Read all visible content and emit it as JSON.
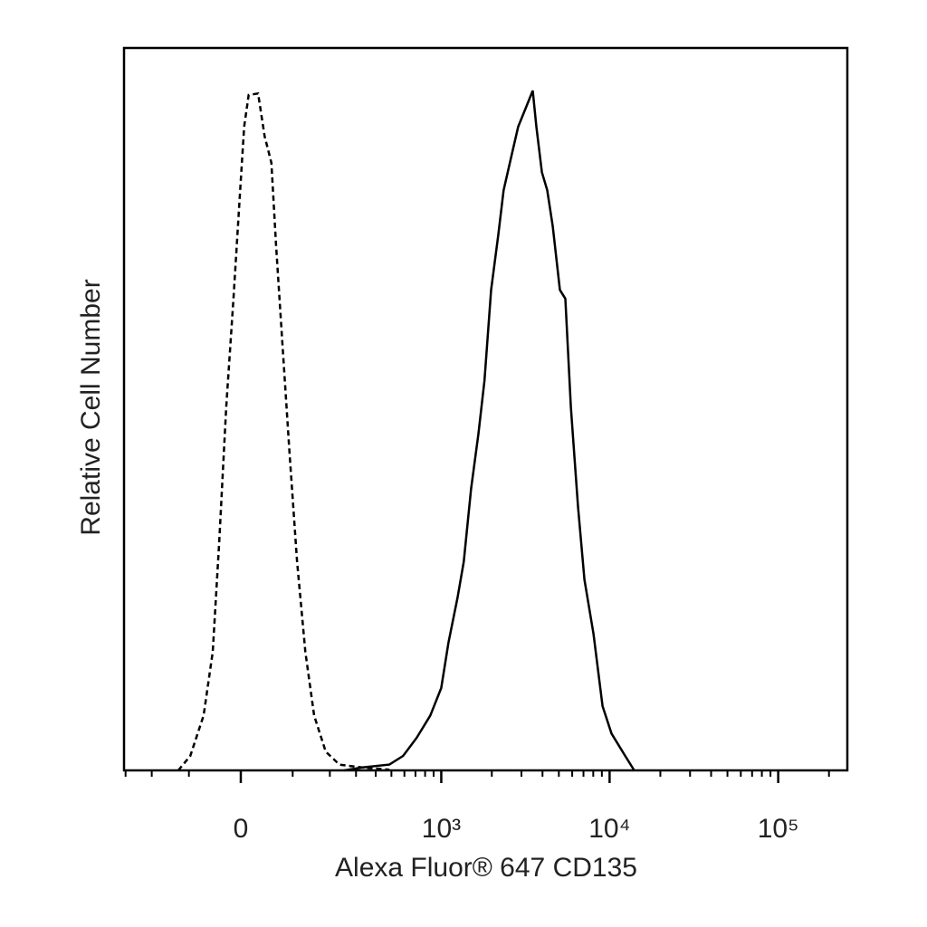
{
  "chart_data": {
    "type": "line",
    "xlabel": "Alexa Fluor® 647 CD135",
    "ylabel": "Relative Cell Number",
    "xscale": "biexponential",
    "xlim": [
      -307,
      257000
    ],
    "ylim": [
      0,
      100
    ],
    "xticks": [
      0,
      {
        "value": 1000,
        "label": "10³"
      },
      {
        "value": 10000,
        "label": "10⁴"
      },
      {
        "value": 100000,
        "label": "10⁵"
      }
    ],
    "xminorticks": [
      -300,
      -200,
      -100,
      100,
      200,
      300,
      400,
      500,
      600,
      700,
      800,
      900,
      2000,
      3000,
      4000,
      5000,
      6000,
      7000,
      8000,
      9000,
      20000,
      30000,
      40000,
      50000,
      60000,
      70000,
      80000,
      90000,
      200000
    ],
    "series": [
      {
        "color": "#000000",
        "linestyle": "dashed",
        "x": [
          -125,
          -97,
          -69,
          -51,
          -39,
          -26,
          -13,
          -2,
          6,
          14,
          31,
          43,
          56,
          65,
          78,
          93,
          110,
          130,
          153,
          187,
          233,
          329,
          486
        ],
        "values": [
          0,
          2,
          7.6,
          16.4,
          31.5,
          50.3,
          65.3,
          79.1,
          89.1,
          93.5,
          93.7,
          87.8,
          84.1,
          72.8,
          59,
          44,
          29,
          16.4,
          7.6,
          2.6,
          0.8,
          0.4,
          0.1
        ]
      },
      {
        "color": "#000000",
        "linestyle": "solid",
        "x": [
          251,
          329,
          486,
          589,
          711,
          859,
          1000,
          1104,
          1250,
          1362,
          1506,
          1664,
          1810,
          1980,
          2185,
          2350,
          2630,
          2870,
          3170,
          3500,
          3680,
          3965,
          4265,
          4600,
          5075,
          5465,
          5890,
          6500,
          7090,
          8025,
          9085,
          10270,
          12380,
          14000
        ],
        "values": [
          0,
          0.4,
          0.8,
          2,
          4.5,
          7.6,
          11.4,
          17.7,
          23.9,
          28.9,
          39,
          46.5,
          54,
          66.5,
          74.1,
          80.3,
          85.3,
          89.1,
          91.6,
          94.1,
          89.1,
          82.8,
          80.3,
          75.3,
          66.5,
          65.3,
          50.3,
          36.5,
          26.4,
          18.9,
          8.9,
          5.1,
          2,
          0
        ]
      }
    ]
  }
}
